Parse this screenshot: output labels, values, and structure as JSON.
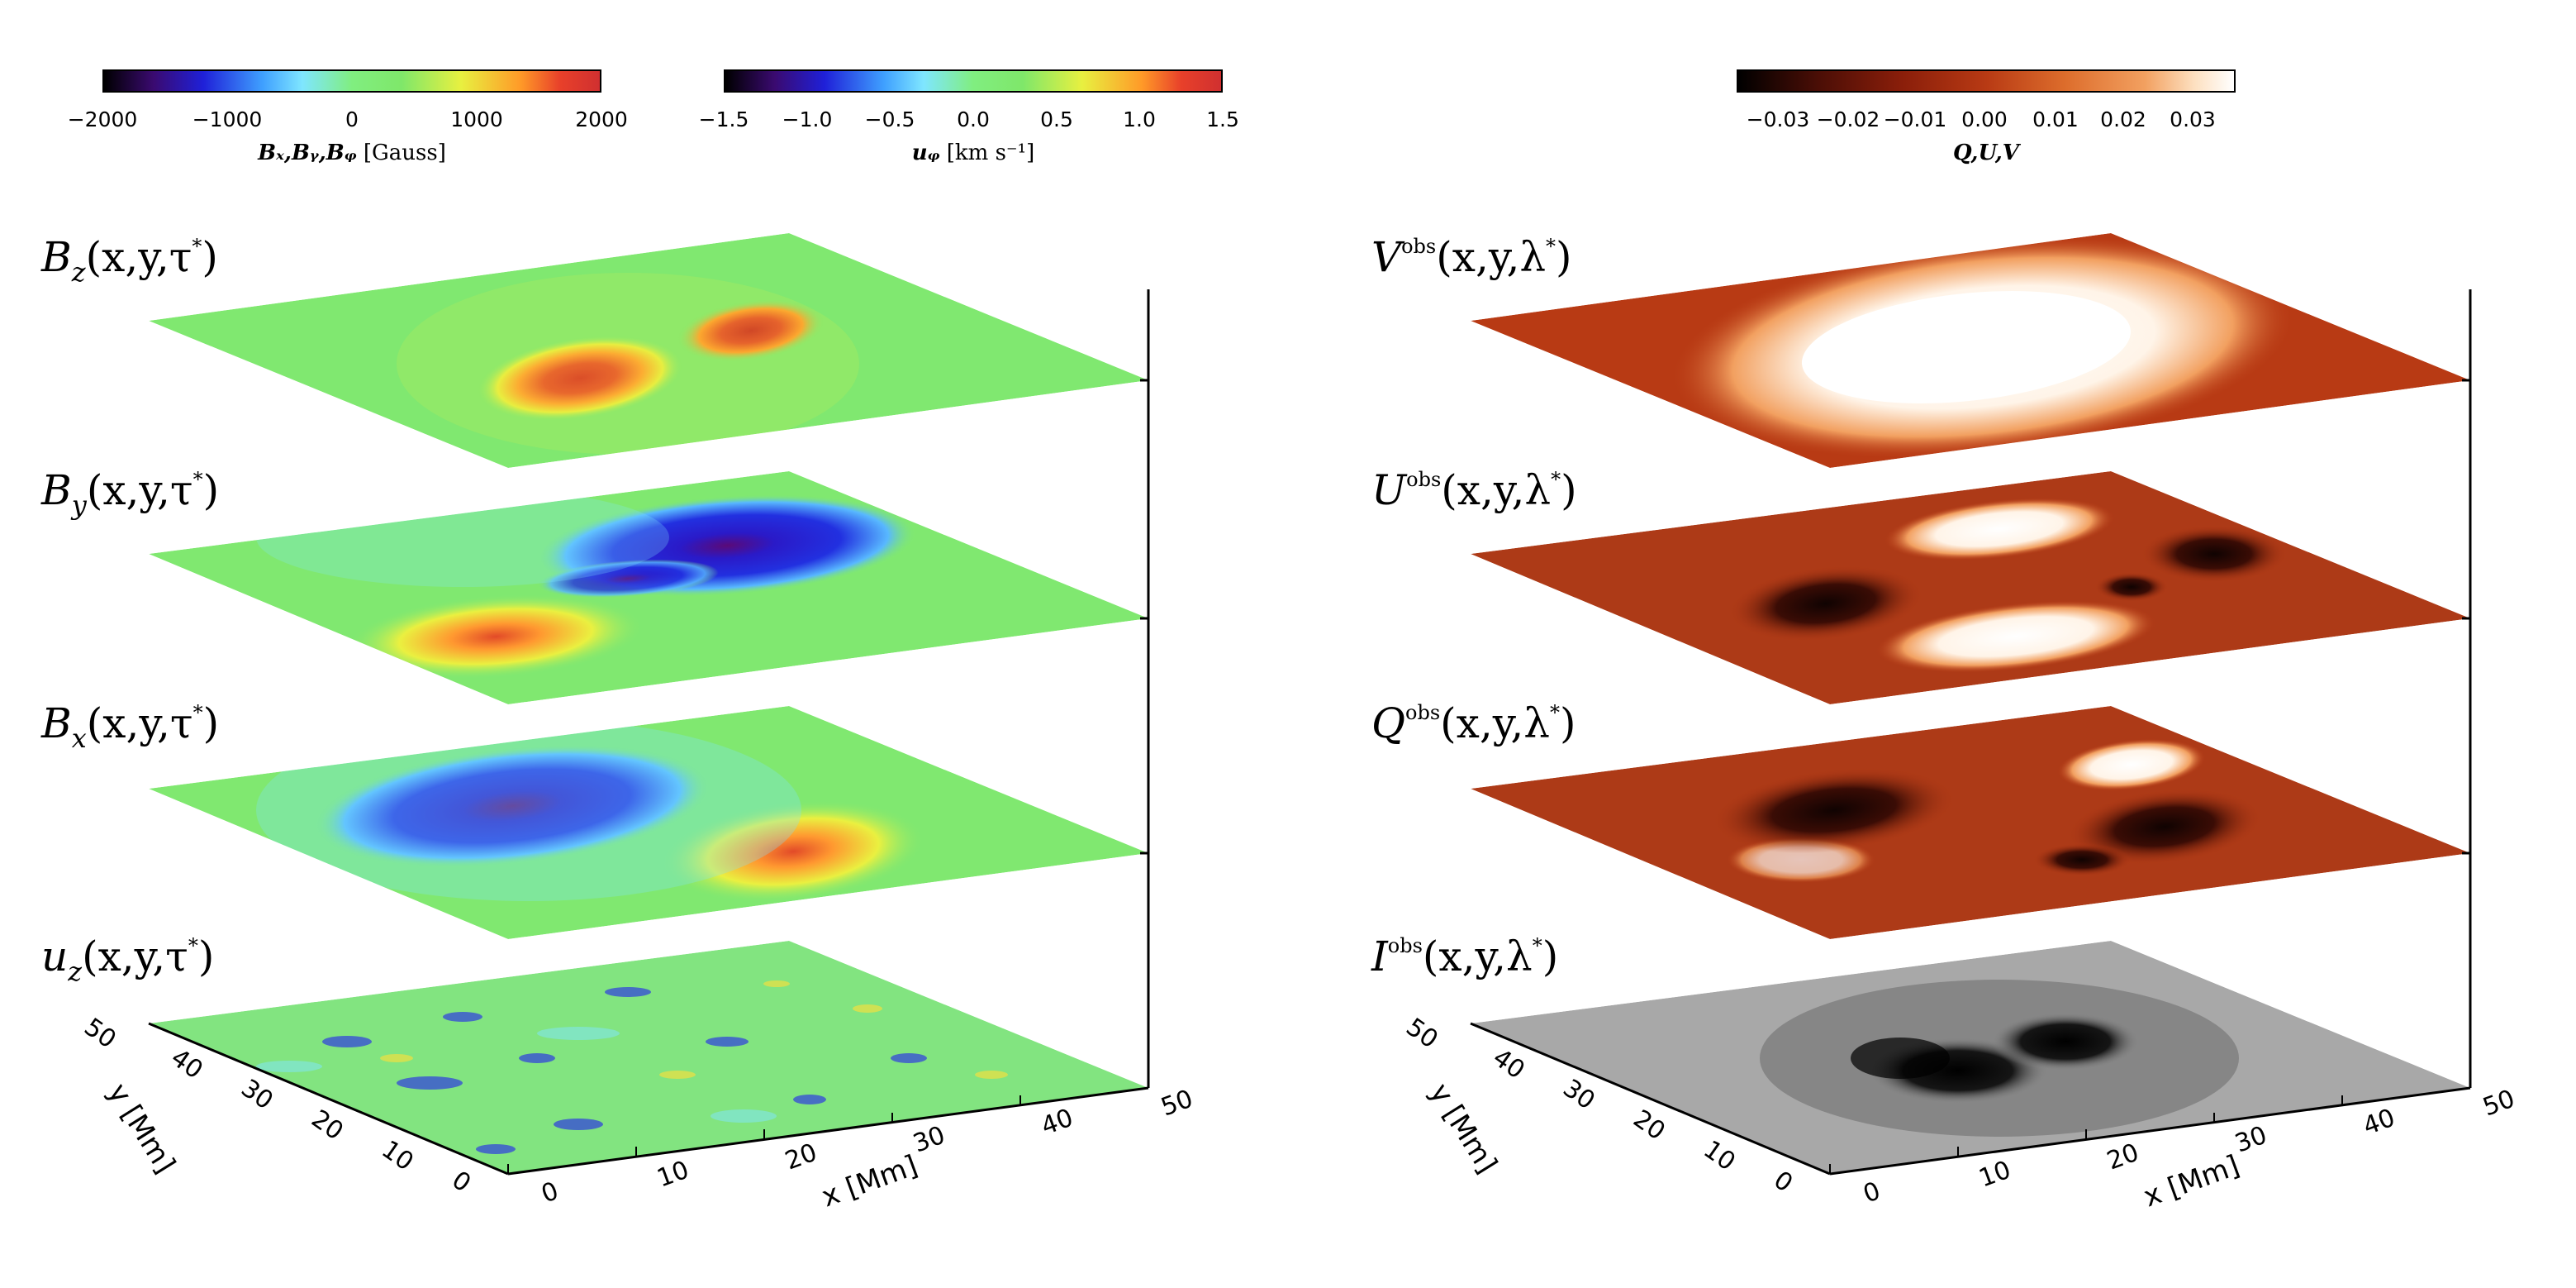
{
  "colorbars": {
    "b": {
      "ticks": [
        "−2000",
        "−1000",
        "0",
        "1000",
        "2000"
      ],
      "title_vars": "Bₓ,Bᵧ,Bᵩ",
      "title_unit": "[Gauss]"
    },
    "uz": {
      "ticks": [
        "−1.5",
        "−1.0",
        "−0.5",
        "0.0",
        "0.5",
        "1.0",
        "1.5"
      ],
      "title_var": "uᵩ",
      "title_unit": "[km s⁻¹]"
    },
    "stokes": {
      "ticks": [
        "−0.03",
        "−0.02",
        "−0.01",
        "0.00",
        "0.01",
        "0.02",
        "0.03"
      ],
      "title": "Q,U,V"
    }
  },
  "left_labels": {
    "bz": {
      "sym": "B",
      "sub": "z",
      "args": "(x,y,τ",
      "star": "*",
      "close": ")"
    },
    "by": {
      "sym": "B",
      "sub": "y",
      "args": "(x,y,τ",
      "star": "*",
      "close": ")"
    },
    "bx": {
      "sym": "B",
      "sub": "x",
      "args": "(x,y,τ",
      "star": "*",
      "close": ")"
    },
    "uz": {
      "sym": "u",
      "sub": "z",
      "args": "(x,y,τ",
      "star": "*",
      "close": ")"
    }
  },
  "right_labels": {
    "v": {
      "sym": "V",
      "sup": "obs",
      "args": "(x,y,λ",
      "star": "*",
      "close": ")"
    },
    "u": {
      "sym": "U",
      "sup": "obs",
      "args": "(x,y,λ",
      "star": "*",
      "close": ")"
    },
    "q": {
      "sym": "Q",
      "sup": "obs",
      "args": "(x,y,λ",
      "star": "*",
      "close": ")"
    },
    "i": {
      "sym": "I",
      "sup": "obs",
      "args": "(x,y,λ",
      "star": "*",
      "close": ")"
    }
  },
  "axes": {
    "x_label": "x [Mm]",
    "y_label": "y [Mm]",
    "x_ticks": [
      "0",
      "10",
      "20",
      "30",
      "40",
      "50"
    ],
    "y_ticks": [
      "0",
      "10",
      "20",
      "30",
      "40",
      "50"
    ]
  }
}
